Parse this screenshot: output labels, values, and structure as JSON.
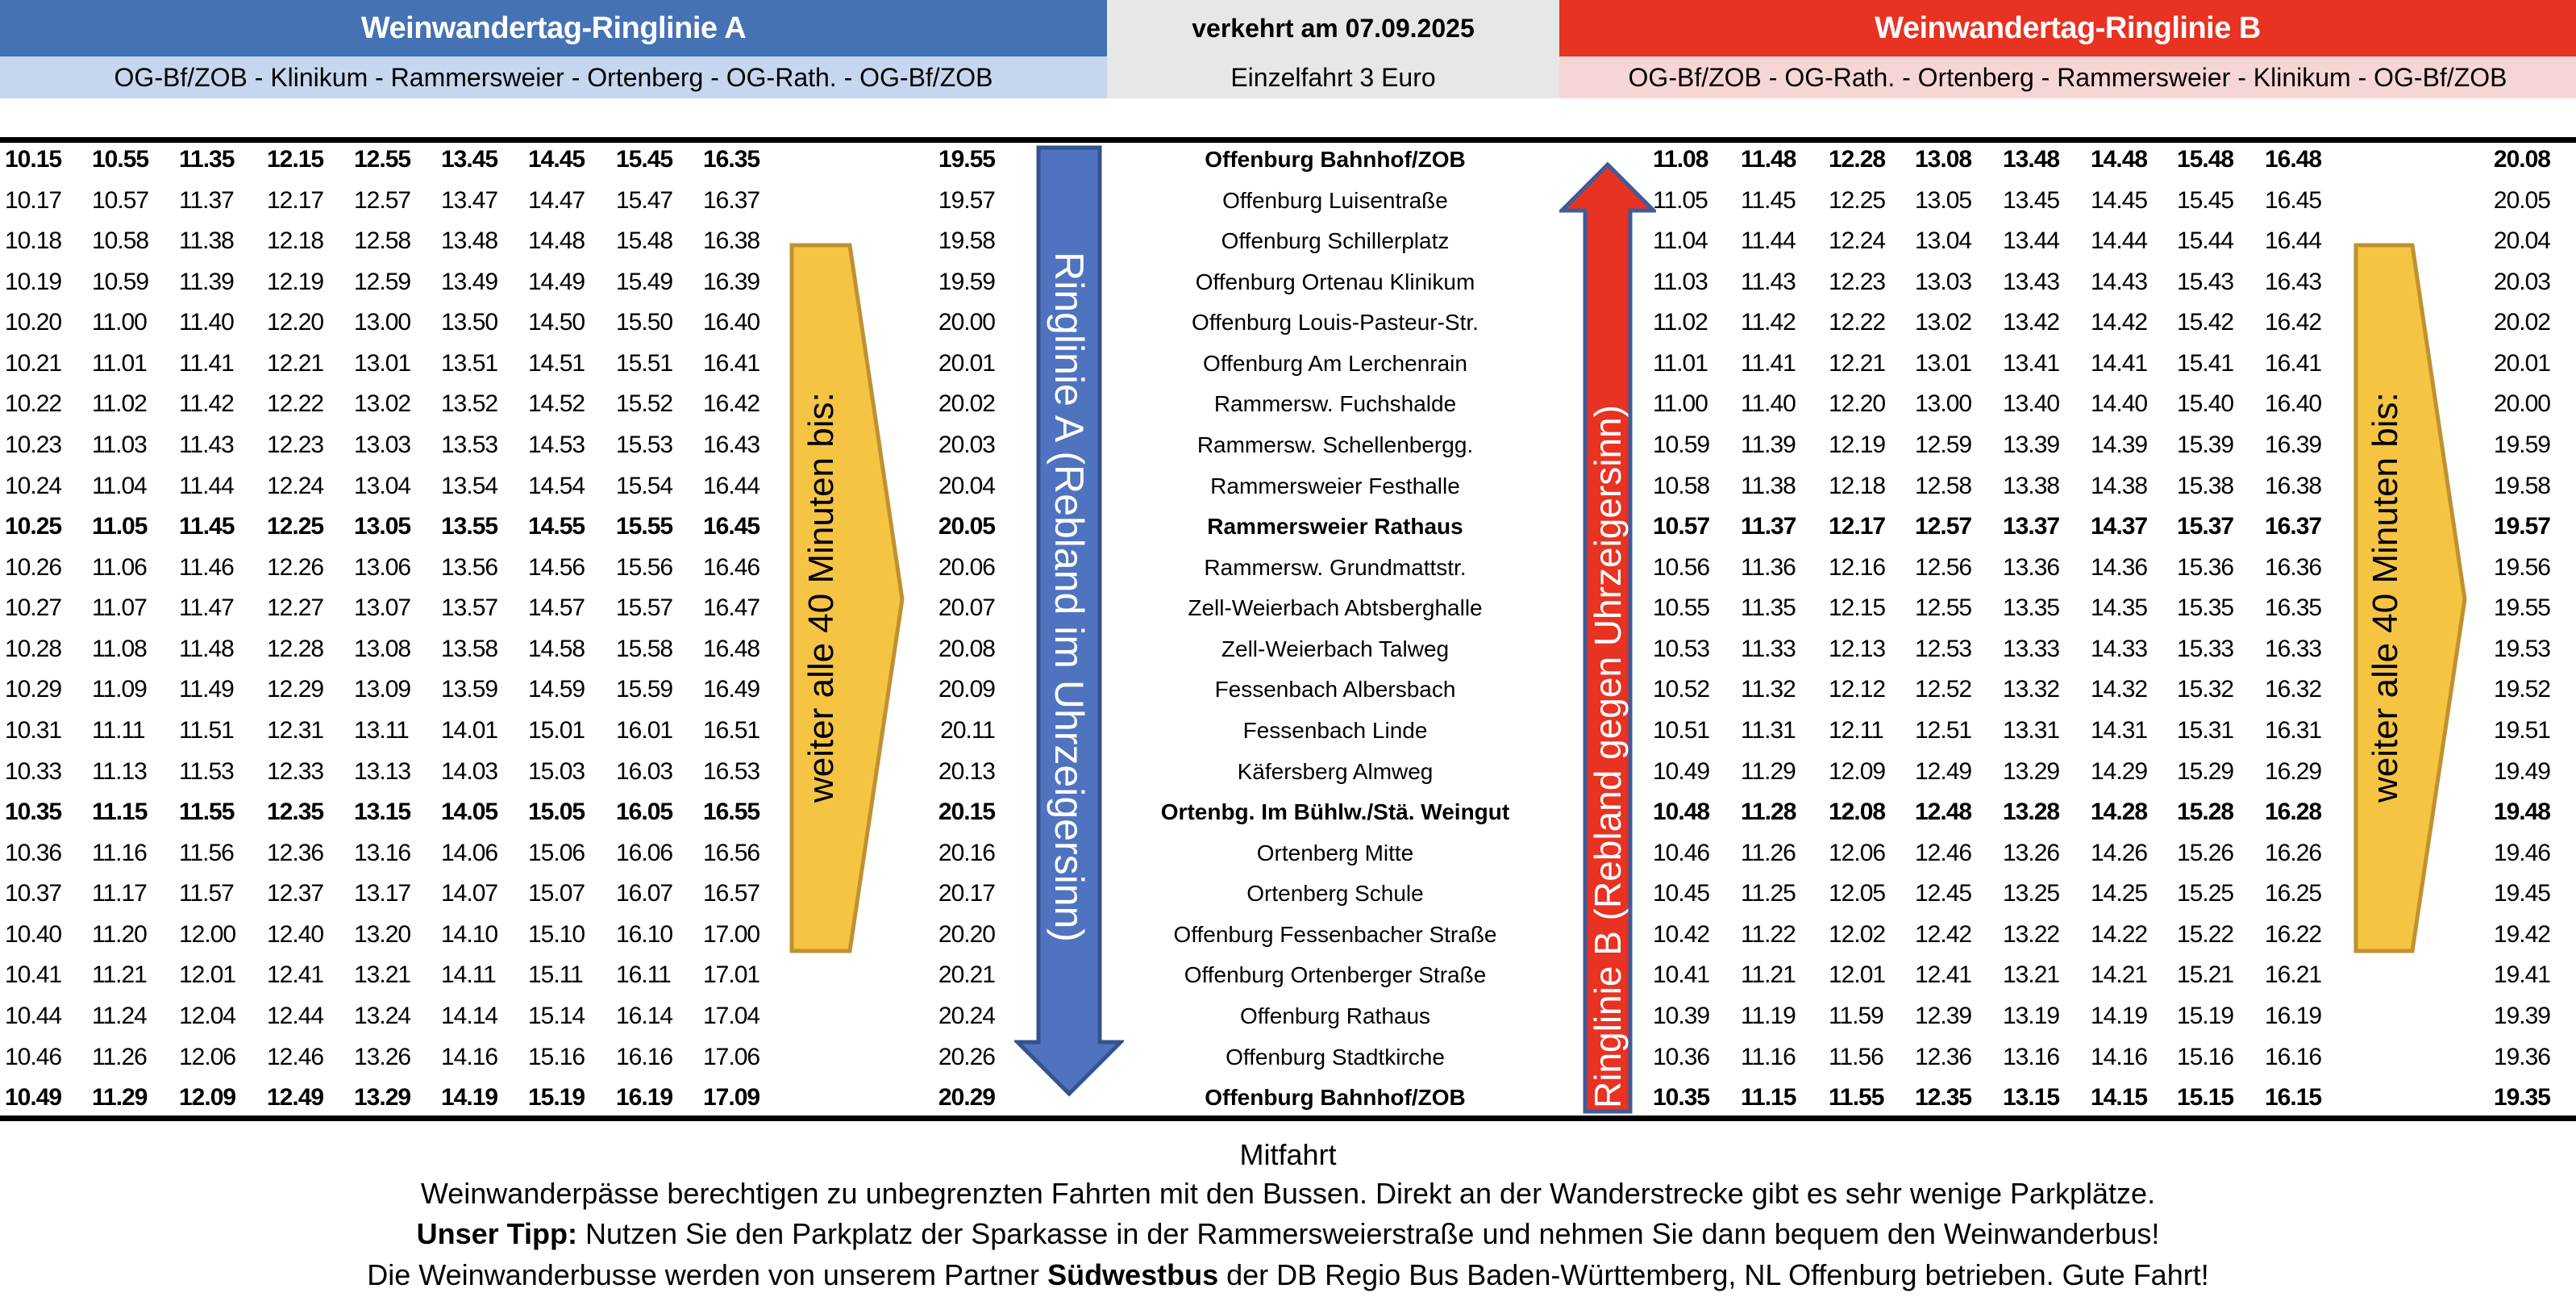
{
  "header": {
    "line_a_title": "Weinwandertag-Ringlinie A",
    "line_a_route": "OG-Bf/ZOB - Klinikum - Rammersweier - Ortenberg - OG-Rath. - OG-Bf/ZOB",
    "service_date": "verkehrt am 07.09.2025",
    "fare": "Einzelfahrt 3 Euro",
    "line_b_title": "Weinwandertag-Ringlinie B",
    "line_b_route": "OG-Bf/ZOB - OG-Rath. - Ortenberg - Rammersweier - Klinikum - OG-Bf/ZOB"
  },
  "colors": {
    "line_a": "#4472B4",
    "line_a_light": "#C6D6EE",
    "neutral": "#E7E7E7",
    "line_b": "#E83222",
    "line_b_light": "#F6D6D5",
    "frequency_arrow": "#F5C443"
  },
  "arrows": {
    "line_a_label": "Ringlinie A (Rebland im Uhrzeigersinn)",
    "line_b_label": "Ringlinie B (Rebland gegen Uhrzeigersinn)",
    "frequency_left": "weiter alle 40 Minuten bis:",
    "frequency_right": "weiter alle 40 Minuten bis:"
  },
  "timetable": [
    {
      "stop": "Offenburg Bahnhof/ZOB",
      "bold": true,
      "a": [
        "10.15",
        "10.55",
        "11.35",
        "12.15",
        "12.55",
        "13.45",
        "14.45",
        "15.45",
        "16.35"
      ],
      "a_last": "19.55",
      "b": [
        "11.08",
        "11.48",
        "12.28",
        "13.08",
        "13.48",
        "14.48",
        "15.48",
        "16.48"
      ],
      "b_last": "20.08"
    },
    {
      "stop": "Offenburg Luisentraße",
      "bold": false,
      "a": [
        "10.17",
        "10.57",
        "11.37",
        "12.17",
        "12.57",
        "13.47",
        "14.47",
        "15.47",
        "16.37"
      ],
      "a_last": "19.57",
      "b": [
        "11.05",
        "11.45",
        "12.25",
        "13.05",
        "13.45",
        "14.45",
        "15.45",
        "16.45"
      ],
      "b_last": "20.05"
    },
    {
      "stop": "Offenburg Schillerplatz",
      "bold": false,
      "a": [
        "10.18",
        "10.58",
        "11.38",
        "12.18",
        "12.58",
        "13.48",
        "14.48",
        "15.48",
        "16.38"
      ],
      "a_last": "19.58",
      "b": [
        "11.04",
        "11.44",
        "12.24",
        "13.04",
        "13.44",
        "14.44",
        "15.44",
        "16.44"
      ],
      "b_last": "20.04"
    },
    {
      "stop": "Offenburg Ortenau Klinikum",
      "bold": false,
      "a": [
        "10.19",
        "10.59",
        "11.39",
        "12.19",
        "12.59",
        "13.49",
        "14.49",
        "15.49",
        "16.39"
      ],
      "a_last": "19.59",
      "b": [
        "11.03",
        "11.43",
        "12.23",
        "13.03",
        "13.43",
        "14.43",
        "15.43",
        "16.43"
      ],
      "b_last": "20.03"
    },
    {
      "stop": "Offenburg Louis-Pasteur-Str.",
      "bold": false,
      "a": [
        "10.20",
        "11.00",
        "11.40",
        "12.20",
        "13.00",
        "13.50",
        "14.50",
        "15.50",
        "16.40"
      ],
      "a_last": "20.00",
      "b": [
        "11.02",
        "11.42",
        "12.22",
        "13.02",
        "13.42",
        "14.42",
        "15.42",
        "16.42"
      ],
      "b_last": "20.02"
    },
    {
      "stop": "Offenburg Am Lerchenrain",
      "bold": false,
      "a": [
        "10.21",
        "11.01",
        "11.41",
        "12.21",
        "13.01",
        "13.51",
        "14.51",
        "15.51",
        "16.41"
      ],
      "a_last": "20.01",
      "b": [
        "11.01",
        "11.41",
        "12.21",
        "13.01",
        "13.41",
        "14.41",
        "15.41",
        "16.41"
      ],
      "b_last": "20.01"
    },
    {
      "stop": "Rammersw. Fuchshalde",
      "bold": false,
      "a": [
        "10.22",
        "11.02",
        "11.42",
        "12.22",
        "13.02",
        "13.52",
        "14.52",
        "15.52",
        "16.42"
      ],
      "a_last": "20.02",
      "b": [
        "11.00",
        "11.40",
        "12.20",
        "13.00",
        "13.40",
        "14.40",
        "15.40",
        "16.40"
      ],
      "b_last": "20.00"
    },
    {
      "stop": "Rammersw. Schellenbergg.",
      "bold": false,
      "a": [
        "10.23",
        "11.03",
        "11.43",
        "12.23",
        "13.03",
        "13.53",
        "14.53",
        "15.53",
        "16.43"
      ],
      "a_last": "20.03",
      "b": [
        "10.59",
        "11.39",
        "12.19",
        "12.59",
        "13.39",
        "14.39",
        "15.39",
        "16.39"
      ],
      "b_last": "19.59"
    },
    {
      "stop": "Rammersweier Festhalle",
      "bold": false,
      "a": [
        "10.24",
        "11.04",
        "11.44",
        "12.24",
        "13.04",
        "13.54",
        "14.54",
        "15.54",
        "16.44"
      ],
      "a_last": "20.04",
      "b": [
        "10.58",
        "11.38",
        "12.18",
        "12.58",
        "13.38",
        "14.38",
        "15.38",
        "16.38"
      ],
      "b_last": "19.58"
    },
    {
      "stop": "Rammersweier Rathaus",
      "bold": true,
      "a": [
        "10.25",
        "11.05",
        "11.45",
        "12.25",
        "13.05",
        "13.55",
        "14.55",
        "15.55",
        "16.45"
      ],
      "a_last": "20.05",
      "b": [
        "10.57",
        "11.37",
        "12.17",
        "12.57",
        "13.37",
        "14.37",
        "15.37",
        "16.37"
      ],
      "b_last": "19.57"
    },
    {
      "stop": "Rammersw. Grundmattstr.",
      "bold": false,
      "a": [
        "10.26",
        "11.06",
        "11.46",
        "12.26",
        "13.06",
        "13.56",
        "14.56",
        "15.56",
        "16.46"
      ],
      "a_last": "20.06",
      "b": [
        "10.56",
        "11.36",
        "12.16",
        "12.56",
        "13.36",
        "14.36",
        "15.36",
        "16.36"
      ],
      "b_last": "19.56"
    },
    {
      "stop": "Zell-Weierbach Abtsberghalle",
      "bold": false,
      "a": [
        "10.27",
        "11.07",
        "11.47",
        "12.27",
        "13.07",
        "13.57",
        "14.57",
        "15.57",
        "16.47"
      ],
      "a_last": "20.07",
      "b": [
        "10.55",
        "11.35",
        "12.15",
        "12.55",
        "13.35",
        "14.35",
        "15.35",
        "16.35"
      ],
      "b_last": "19.55"
    },
    {
      "stop": "Zell-Weierbach Talweg",
      "bold": false,
      "a": [
        "10.28",
        "11.08",
        "11.48",
        "12.28",
        "13.08",
        "13.58",
        "14.58",
        "15.58",
        "16.48"
      ],
      "a_last": "20.08",
      "b": [
        "10.53",
        "11.33",
        "12.13",
        "12.53",
        "13.33",
        "14.33",
        "15.33",
        "16.33"
      ],
      "b_last": "19.53"
    },
    {
      "stop": "Fessenbach Albersbach",
      "bold": false,
      "a": [
        "10.29",
        "11.09",
        "11.49",
        "12.29",
        "13.09",
        "13.59",
        "14.59",
        "15.59",
        "16.49"
      ],
      "a_last": "20.09",
      "b": [
        "10.52",
        "11.32",
        "12.12",
        "12.52",
        "13.32",
        "14.32",
        "15.32",
        "16.32"
      ],
      "b_last": "19.52"
    },
    {
      "stop": "Fessenbach Linde",
      "bold": false,
      "a": [
        "10.31",
        "11.11",
        "11.51",
        "12.31",
        "13.11",
        "14.01",
        "15.01",
        "16.01",
        "16.51"
      ],
      "a_last": "20.11",
      "b": [
        "10.51",
        "11.31",
        "12.11",
        "12.51",
        "13.31",
        "14.31",
        "15.31",
        "16.31"
      ],
      "b_last": "19.51"
    },
    {
      "stop": "Käfersberg Almweg",
      "bold": false,
      "a": [
        "10.33",
        "11.13",
        "11.53",
        "12.33",
        "13.13",
        "14.03",
        "15.03",
        "16.03",
        "16.53"
      ],
      "a_last": "20.13",
      "b": [
        "10.49",
        "11.29",
        "12.09",
        "12.49",
        "13.29",
        "14.29",
        "15.29",
        "16.29"
      ],
      "b_last": "19.49"
    },
    {
      "stop": "Ortenbg. Im Bühlw./Stä. Weingut",
      "bold": true,
      "a": [
        "10.35",
        "11.15",
        "11.55",
        "12.35",
        "13.15",
        "14.05",
        "15.05",
        "16.05",
        "16.55"
      ],
      "a_last": "20.15",
      "b": [
        "10.48",
        "11.28",
        "12.08",
        "12.48",
        "13.28",
        "14.28",
        "15.28",
        "16.28"
      ],
      "b_last": "19.48"
    },
    {
      "stop": "Ortenberg Mitte",
      "bold": false,
      "a": [
        "10.36",
        "11.16",
        "11.56",
        "12.36",
        "13.16",
        "14.06",
        "15.06",
        "16.06",
        "16.56"
      ],
      "a_last": "20.16",
      "b": [
        "10.46",
        "11.26",
        "12.06",
        "12.46",
        "13.26",
        "14.26",
        "15.26",
        "16.26"
      ],
      "b_last": "19.46"
    },
    {
      "stop": "Ortenberg Schule",
      "bold": false,
      "a": [
        "10.37",
        "11.17",
        "11.57",
        "12.37",
        "13.17",
        "14.07",
        "15.07",
        "16.07",
        "16.57"
      ],
      "a_last": "20.17",
      "b": [
        "10.45",
        "11.25",
        "12.05",
        "12.45",
        "13.25",
        "14.25",
        "15.25",
        "16.25"
      ],
      "b_last": "19.45"
    },
    {
      "stop": "Offenburg Fessenbacher Straße",
      "bold": false,
      "a": [
        "10.40",
        "11.20",
        "12.00",
        "12.40",
        "13.20",
        "14.10",
        "15.10",
        "16.10",
        "17.00"
      ],
      "a_last": "20.20",
      "b": [
        "10.42",
        "11.22",
        "12.02",
        "12.42",
        "13.22",
        "14.22",
        "15.22",
        "16.22"
      ],
      "b_last": "19.42"
    },
    {
      "stop": "Offenburg Ortenberger Straße",
      "bold": false,
      "a": [
        "10.41",
        "11.21",
        "12.01",
        "12.41",
        "13.21",
        "14.11",
        "15.11",
        "16.11",
        "17.01"
      ],
      "a_last": "20.21",
      "b": [
        "10.41",
        "11.21",
        "12.01",
        "12.41",
        "13.21",
        "14.21",
        "15.21",
        "16.21"
      ],
      "b_last": "19.41"
    },
    {
      "stop": "Offenburg Rathaus",
      "bold": false,
      "a": [
        "10.44",
        "11.24",
        "12.04",
        "12.44",
        "13.24",
        "14.14",
        "15.14",
        "16.14",
        "17.04"
      ],
      "a_last": "20.24",
      "b": [
        "10.39",
        "11.19",
        "11.59",
        "12.39",
        "13.19",
        "14.19",
        "15.19",
        "16.19"
      ],
      "b_last": "19.39"
    },
    {
      "stop": "Offenburg Stadtkirche",
      "bold": false,
      "a": [
        "10.46",
        "11.26",
        "12.06",
        "12.46",
        "13.26",
        "14.16",
        "15.16",
        "16.16",
        "17.06"
      ],
      "a_last": "20.26",
      "b": [
        "10.36",
        "11.16",
        "11.56",
        "12.36",
        "13.16",
        "14.16",
        "15.16",
        "16.16"
      ],
      "b_last": "19.36"
    },
    {
      "stop": "Offenburg Bahnhof/ZOB",
      "bold": true,
      "a": [
        "10.49",
        "11.29",
        "12.09",
        "12.49",
        "13.29",
        "14.19",
        "15.19",
        "16.19",
        "17.09"
      ],
      "a_last": "20.29",
      "b": [
        "10.35",
        "11.15",
        "11.55",
        "12.35",
        "13.15",
        "14.15",
        "15.15",
        "16.15"
      ],
      "b_last": "19.35"
    }
  ],
  "footer": {
    "heading": "Mitfahrt",
    "line1": "Weinwanderpässe berechtigen zu unbegrenzten Fahrten mit den Bussen. Direkt an der Wanderstrecke gibt es sehr wenige Parkplätze.",
    "tip_label": "Unser Tipp:",
    "tip_text": " Nutzen Sie den Parkplatz der Sparkasse in der Rammersweierstraße und nehmen Sie dann bequem den Weinwanderbus!",
    "operator_pre": "Die Weinwanderbusse werden von unserem Partner ",
    "operator_name": "Südwestbus",
    "operator_post": " der DB Regio Bus Baden-Württemberg, NL Offenburg betrieben. Gute Fahrt!"
  }
}
